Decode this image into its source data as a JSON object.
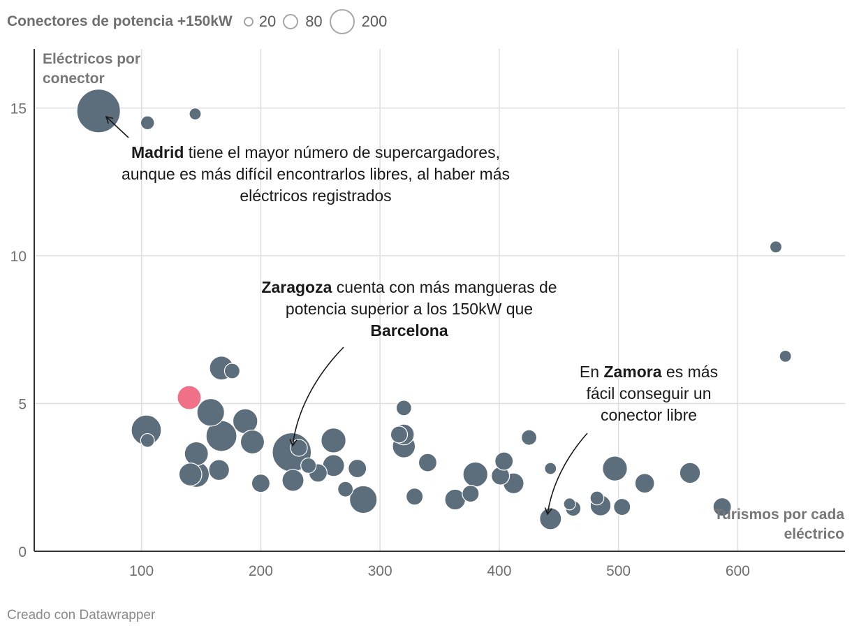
{
  "legend": {
    "title": "Conectores de potencia +150kW",
    "items": [
      {
        "label": "20",
        "value": 20
      },
      {
        "label": "80",
        "value": 80
      },
      {
        "label": "200",
        "value": 200
      }
    ]
  },
  "chart_data": {
    "type": "scatter",
    "xlabel": "Turismos por cada eléctrico",
    "ylabel": "Eléctricos por conector",
    "xlim": [
      10,
      690
    ],
    "ylim": [
      0,
      17
    ],
    "xticks": [
      100,
      200,
      300,
      400,
      500,
      600
    ],
    "yticks": [
      0,
      5,
      10,
      15
    ],
    "grid": true,
    "colors": {
      "default": "#5c6e7b",
      "highlight": "#f07187",
      "grid": "#dedede",
      "axis": "#333333"
    },
    "points": [
      {
        "x": 64,
        "y": 14.9,
        "size": 200,
        "name": "Madrid"
      },
      {
        "x": 105,
        "y": 14.5,
        "size": 20
      },
      {
        "x": 145,
        "y": 14.8,
        "size": 15
      },
      {
        "x": 632,
        "y": 10.3,
        "size": 15
      },
      {
        "x": 640,
        "y": 6.6,
        "size": 15
      },
      {
        "x": 167,
        "y": 6.2,
        "size": 60
      },
      {
        "x": 176,
        "y": 6.1,
        "size": 25
      },
      {
        "x": 140,
        "y": 5.2,
        "size": 60,
        "highlight": true
      },
      {
        "x": 158,
        "y": 4.7,
        "size": 80
      },
      {
        "x": 104,
        "y": 4.1,
        "size": 95
      },
      {
        "x": 105,
        "y": 3.75,
        "size": 20
      },
      {
        "x": 187,
        "y": 4.4,
        "size": 65
      },
      {
        "x": 167,
        "y": 3.9,
        "size": 100
      },
      {
        "x": 193,
        "y": 3.7,
        "size": 60
      },
      {
        "x": 146,
        "y": 3.3,
        "size": 60
      },
      {
        "x": 141,
        "y": 2.6,
        "size": 55
      },
      {
        "x": 146,
        "y": 2.6,
        "size": 70
      },
      {
        "x": 165,
        "y": 2.75,
        "size": 45
      },
      {
        "x": 200,
        "y": 2.3,
        "size": 35
      },
      {
        "x": 226,
        "y": 3.35,
        "size": 160,
        "name": "Zaragoza"
      },
      {
        "x": 232,
        "y": 3.5,
        "size": 30
      },
      {
        "x": 240,
        "y": 2.9,
        "size": 25
      },
      {
        "x": 248,
        "y": 2.65,
        "size": 35
      },
      {
        "x": 227,
        "y": 2.4,
        "size": 50
      },
      {
        "x": 261,
        "y": 3.75,
        "size": 65
      },
      {
        "x": 261,
        "y": 2.9,
        "size": 50
      },
      {
        "x": 271,
        "y": 2.1,
        "size": 25
      },
      {
        "x": 281,
        "y": 2.8,
        "size": 35
      },
      {
        "x": 286,
        "y": 1.75,
        "size": 80
      },
      {
        "x": 316,
        "y": 3.95,
        "size": 30
      },
      {
        "x": 320,
        "y": 3.95,
        "size": 45
      },
      {
        "x": 320,
        "y": 4.85,
        "size": 25
      },
      {
        "x": 320,
        "y": 3.55,
        "size": 55
      },
      {
        "x": 329,
        "y": 1.85,
        "size": 30
      },
      {
        "x": 340,
        "y": 3.0,
        "size": 35
      },
      {
        "x": 363,
        "y": 1.75,
        "size": 45
      },
      {
        "x": 376,
        "y": 1.95,
        "size": 30
      },
      {
        "x": 380,
        "y": 2.6,
        "size": 65
      },
      {
        "x": 401,
        "y": 2.55,
        "size": 35
      },
      {
        "x": 404,
        "y": 3.05,
        "size": 35
      },
      {
        "x": 412,
        "y": 2.3,
        "size": 45
      },
      {
        "x": 425,
        "y": 3.85,
        "size": 25
      },
      {
        "x": 443,
        "y": 2.8,
        "size": 15
      },
      {
        "x": 443,
        "y": 1.1,
        "size": 50,
        "name": "Zamora"
      },
      {
        "x": 459,
        "y": 1.6,
        "size": 15
      },
      {
        "x": 462,
        "y": 1.45,
        "size": 25
      },
      {
        "x": 482,
        "y": 1.8,
        "size": 20
      },
      {
        "x": 485,
        "y": 1.55,
        "size": 45
      },
      {
        "x": 497,
        "y": 2.8,
        "size": 65
      },
      {
        "x": 503,
        "y": 1.5,
        "size": 30
      },
      {
        "x": 522,
        "y": 2.3,
        "size": 40
      },
      {
        "x": 560,
        "y": 2.65,
        "size": 45
      },
      {
        "x": 587,
        "y": 1.5,
        "size": 35
      }
    ],
    "annotations": [
      {
        "id": "madrid",
        "parts": [
          {
            "text": "Madrid",
            "bold": true
          },
          {
            "text": " tiene el mayor número de supercargadores,"
          }
        ],
        "lines": [
          "aunque es más difícil encontrarlos libres, al haber más",
          "eléctricos registrados"
        ]
      },
      {
        "id": "zaragoza",
        "parts": [
          {
            "text": "Zaragoza",
            "bold": true
          },
          {
            "text": " cuenta con más mangueras de"
          }
        ],
        "lines": [
          "potencia superior a los 150kW que"
        ],
        "last_bold": "Barcelona"
      },
      {
        "id": "zamora",
        "parts": [
          {
            "text": "En "
          },
          {
            "text": "Zamora",
            "bold": true
          },
          {
            "text": " es más"
          }
        ],
        "lines": [
          "fácil conseguir un",
          "conector libre"
        ]
      }
    ]
  },
  "footer": {
    "text": "Creado con Datawrapper"
  }
}
